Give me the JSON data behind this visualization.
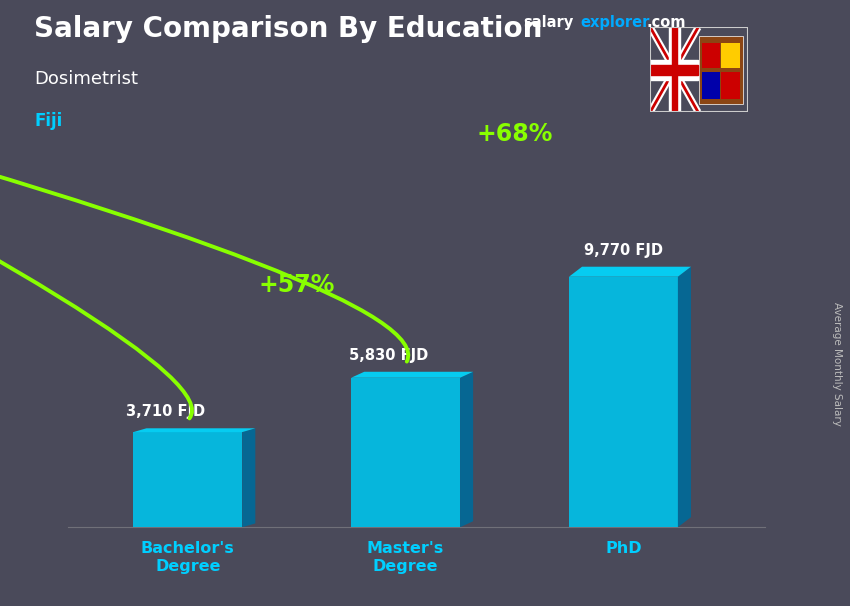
{
  "title": "Salary Comparison By Education",
  "subtitle": "Dosimetrist",
  "country": "Fiji",
  "categories": [
    "Bachelor's\nDegree",
    "Master's\nDegree",
    "PhD"
  ],
  "values": [
    3710,
    5830,
    9770
  ],
  "value_labels": [
    "3,710 FJD",
    "5,830 FJD",
    "9,770 FJD"
  ],
  "pct_labels": [
    "+57%",
    "+68%"
  ],
  "bar_color_face": "#00c0e8",
  "bar_color_dark": "#006a99",
  "bar_color_top": "#00d8ff",
  "bg_color": "#4a4a5a",
  "title_color": "#ffffff",
  "subtitle_color": "#ffffff",
  "country_color": "#00cfff",
  "value_label_color": "#ffffff",
  "pct_color": "#88ff00",
  "xlabel_color": "#00cfff",
  "rotated_label": "Average Monthly Salary",
  "ylim": [
    0,
    13000
  ],
  "watermark_salary": "salary",
  "watermark_explorer": "explorer",
  "watermark_com": ".com",
  "watermark_color_white": "#ffffff",
  "watermark_color_cyan": "#00aaff"
}
